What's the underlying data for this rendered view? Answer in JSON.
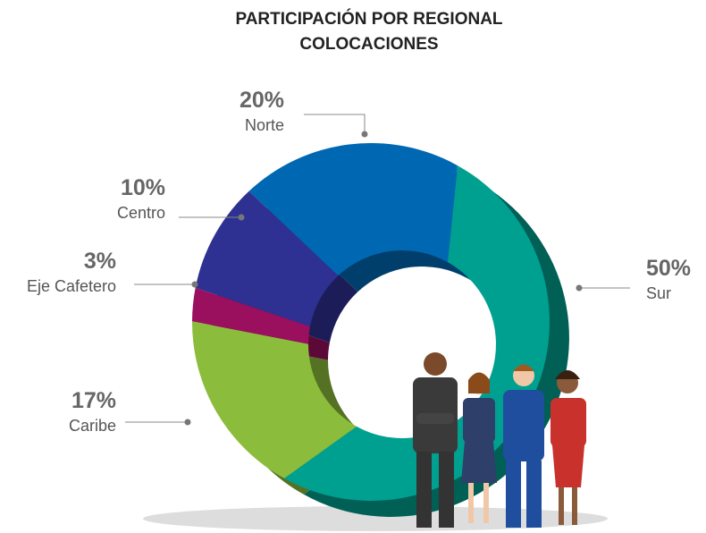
{
  "chart_data": {
    "type": "pie",
    "title": [
      "PARTICIPACIÓN POR REGIONAL",
      "COLOCACIONES"
    ],
    "categories": [
      "Sur",
      "Caribe",
      "Eje Cafetero",
      "Centro",
      "Norte"
    ],
    "values": [
      50,
      17,
      3,
      10,
      20
    ],
    "value_labels": [
      "50%",
      "17%",
      "3%",
      "10%",
      "20%"
    ],
    "colors": [
      "#00a090",
      "#8cbc3c",
      "#9a0f5e",
      "#2e3192",
      "#0068b2"
    ]
  }
}
